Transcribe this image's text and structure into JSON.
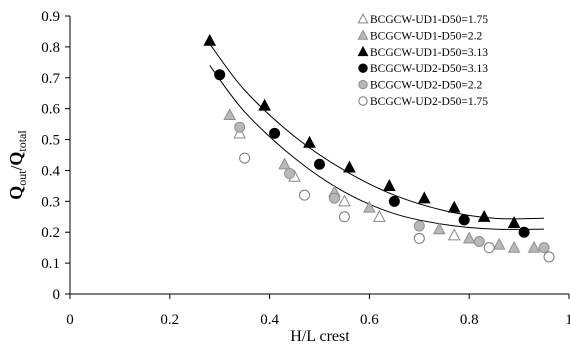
{
  "chart_data": {
    "type": "scatter",
    "xlabel": "H/L crest",
    "ylabel": {
      "main": "Q",
      "sub_out": "out",
      "slash": "/",
      "main2": "Q",
      "sub_total": "total"
    },
    "xlim": [
      0,
      1
    ],
    "ylim": [
      0,
      0.9
    ],
    "x_ticks": [
      "0",
      "0.2",
      "0.4",
      "0.6",
      "0.8",
      "1"
    ],
    "y_ticks": [
      "0",
      "0.1",
      "0.2",
      "0.3",
      "0.4",
      "0.5",
      "0.6",
      "0.7",
      "0.8",
      "0.9"
    ],
    "grid": false,
    "legend_position": "top-right",
    "series": [
      {
        "name": "BCGCW-UD1-D50=1.75",
        "marker": "triangle-open",
        "points": [
          [
            0.34,
            0.52
          ],
          [
            0.45,
            0.38
          ],
          [
            0.55,
            0.3
          ],
          [
            0.62,
            0.25
          ],
          [
            0.77,
            0.19
          ]
        ]
      },
      {
        "name": "BCGCW-UD1-D50=2.2",
        "marker": "triangle-gray",
        "points": [
          [
            0.32,
            0.58
          ],
          [
            0.43,
            0.42
          ],
          [
            0.53,
            0.33
          ],
          [
            0.6,
            0.28
          ],
          [
            0.74,
            0.21
          ],
          [
            0.8,
            0.18
          ],
          [
            0.86,
            0.16
          ],
          [
            0.89,
            0.15
          ],
          [
            0.93,
            0.15
          ]
        ]
      },
      {
        "name": "BCGCW-UD1-D50=3.13",
        "marker": "triangle-filled",
        "points": [
          [
            0.28,
            0.82
          ],
          [
            0.39,
            0.61
          ],
          [
            0.48,
            0.49
          ],
          [
            0.56,
            0.41
          ],
          [
            0.64,
            0.35
          ],
          [
            0.71,
            0.31
          ],
          [
            0.77,
            0.28
          ],
          [
            0.83,
            0.25
          ],
          [
            0.89,
            0.23
          ]
        ]
      },
      {
        "name": "BCGCW-UD2-D50=3.13",
        "marker": "circle-filled",
        "points": [
          [
            0.3,
            0.71
          ],
          [
            0.41,
            0.52
          ],
          [
            0.5,
            0.42
          ],
          [
            0.65,
            0.3
          ],
          [
            0.79,
            0.24
          ],
          [
            0.91,
            0.2
          ]
        ]
      },
      {
        "name": "BCGCW-UD2-D50=2.2",
        "marker": "circle-gray",
        "points": [
          [
            0.34,
            0.54
          ],
          [
            0.44,
            0.39
          ],
          [
            0.53,
            0.31
          ],
          [
            0.7,
            0.22
          ],
          [
            0.82,
            0.17
          ],
          [
            0.95,
            0.15
          ]
        ]
      },
      {
        "name": "BCGCW-UD2-D50=1.75",
        "marker": "circle-open",
        "points": [
          [
            0.35,
            0.44
          ],
          [
            0.47,
            0.32
          ],
          [
            0.55,
            0.25
          ],
          [
            0.7,
            0.18
          ],
          [
            0.84,
            0.15
          ],
          [
            0.96,
            0.12
          ]
        ]
      }
    ],
    "trendlines": [
      {
        "name": "upper-trend",
        "points": [
          [
            0.28,
            0.81
          ],
          [
            0.35,
            0.66
          ],
          [
            0.45,
            0.51
          ],
          [
            0.55,
            0.4
          ],
          [
            0.65,
            0.32
          ],
          [
            0.75,
            0.27
          ],
          [
            0.85,
            0.245
          ],
          [
            0.95,
            0.245
          ]
        ]
      },
      {
        "name": "lower-trend",
        "points": [
          [
            0.28,
            0.74
          ],
          [
            0.35,
            0.59
          ],
          [
            0.45,
            0.44
          ],
          [
            0.55,
            0.33
          ],
          [
            0.65,
            0.26
          ],
          [
            0.75,
            0.225
          ],
          [
            0.85,
            0.21
          ],
          [
            0.95,
            0.21
          ]
        ]
      }
    ]
  }
}
